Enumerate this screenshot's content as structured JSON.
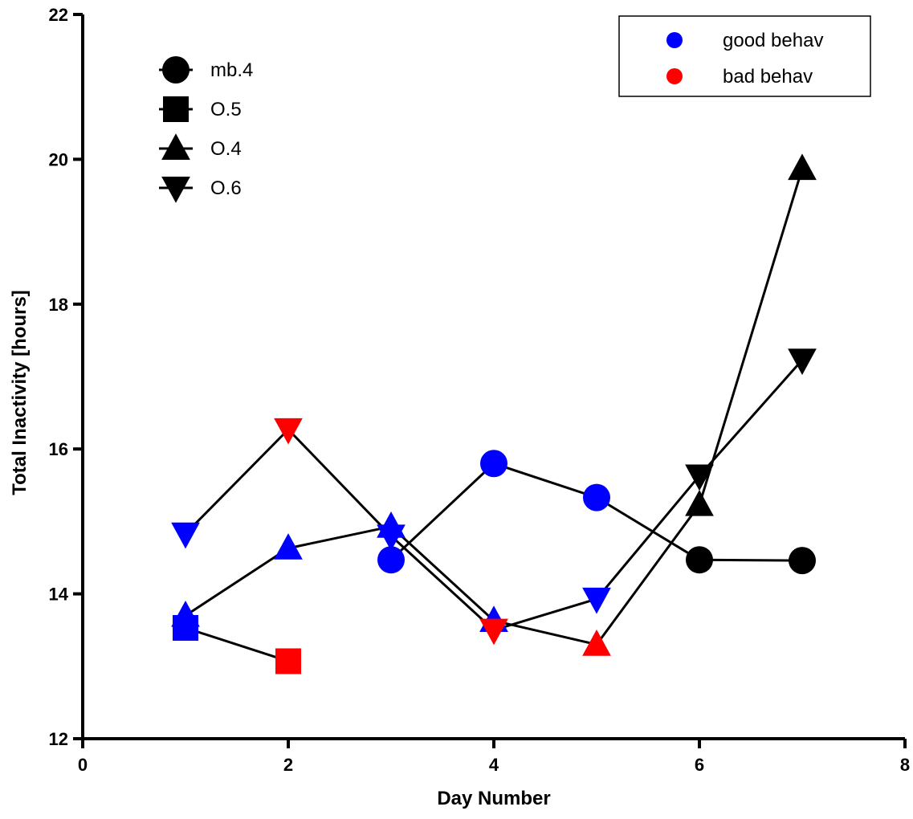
{
  "chart_data": {
    "type": "scatter",
    "title": "",
    "xlabel": "Day Number",
    "ylabel": "Total Inactivity [hours]",
    "xlim": [
      0,
      8
    ],
    "ylim": [
      12,
      22
    ],
    "xticks": [
      "0",
      "2",
      "4",
      "6",
      "8"
    ],
    "yticks": [
      "12",
      "14",
      "16",
      "18",
      "20",
      "22"
    ],
    "grid": false,
    "legend_shapes_position": "top-left",
    "legend_colors_position": "top-right",
    "status_colors": {
      "good behav": "#0000ff",
      "bad behav": "#ff0000",
      "unlabeled": "#000000"
    },
    "series": [
      {
        "name": "mb.4",
        "marker": "circle",
        "points": [
          {
            "x": 3,
            "y": 14.47,
            "status": "good behav"
          },
          {
            "x": 4,
            "y": 15.8,
            "status": "good behav"
          },
          {
            "x": 5,
            "y": 15.33,
            "status": "good behav"
          },
          {
            "x": 6,
            "y": 14.47,
            "status": "unlabeled"
          },
          {
            "x": 7,
            "y": 14.46,
            "status": "unlabeled"
          }
        ]
      },
      {
        "name": "O.5",
        "marker": "square",
        "points": [
          {
            "x": 1,
            "y": 13.53,
            "status": "good behav"
          },
          {
            "x": 2,
            "y": 13.07,
            "status": "bad behav"
          }
        ]
      },
      {
        "name": "O.4",
        "marker": "triangle-up",
        "points": [
          {
            "x": 1,
            "y": 13.7,
            "status": "good behav"
          },
          {
            "x": 2,
            "y": 14.63,
            "status": "good behav"
          },
          {
            "x": 3,
            "y": 14.93,
            "status": "good behav"
          },
          {
            "x": 4,
            "y": 13.63,
            "status": "good behav"
          },
          {
            "x": 5,
            "y": 13.3,
            "status": "bad behav"
          },
          {
            "x": 6,
            "y": 15.23,
            "status": "unlabeled"
          },
          {
            "x": 7,
            "y": 19.87,
            "status": "unlabeled"
          }
        ]
      },
      {
        "name": "O.6",
        "marker": "triangle-down",
        "points": [
          {
            "x": 1,
            "y": 14.83,
            "status": "good behav"
          },
          {
            "x": 2,
            "y": 16.27,
            "status": "bad behav"
          },
          {
            "x": 3,
            "y": 14.8,
            "status": "good behav"
          },
          {
            "x": 4,
            "y": 13.5,
            "status": "bad behav"
          },
          {
            "x": 5,
            "y": 13.93,
            "status": "good behav"
          },
          {
            "x": 6,
            "y": 15.63,
            "status": "unlabeled"
          },
          {
            "x": 7,
            "y": 17.23,
            "status": "unlabeled"
          }
        ]
      }
    ],
    "legend_shapes": [
      {
        "label": "mb.4",
        "marker": "circle"
      },
      {
        "label": "O.5",
        "marker": "square"
      },
      {
        "label": "O.4",
        "marker": "triangle-up"
      },
      {
        "label": "O.6",
        "marker": "triangle-down"
      }
    ],
    "legend_colors": [
      {
        "label": "good behav",
        "color": "#0000ff"
      },
      {
        "label": "bad behav",
        "color": "#ff0000"
      }
    ]
  }
}
